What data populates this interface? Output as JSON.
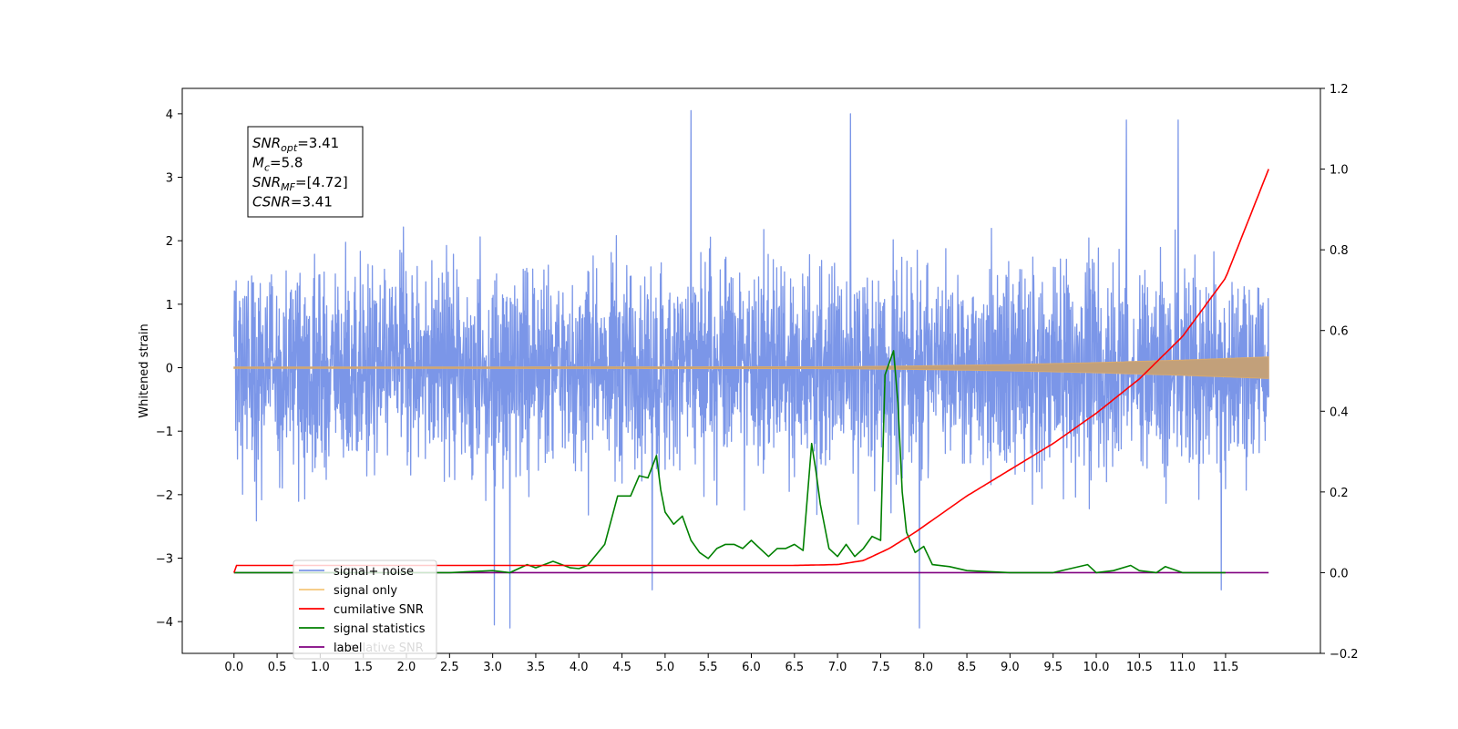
{
  "chart_data": {
    "type": "line",
    "ylabel": "Whitened strain",
    "xlim": [
      -0.6,
      12.6
    ],
    "ylim": [
      -4.5,
      4.4
    ],
    "y2lim": [
      -0.2,
      1.2
    ],
    "x_ticks": [
      "0.0",
      "0.5",
      "1.0",
      "1.5",
      "2.0",
      "2.5",
      "3.0",
      "3.5",
      "4.0",
      "4.5",
      "5.0",
      "5.5",
      "6.0",
      "6.5",
      "7.0",
      "7.5",
      "8.0",
      "8.5",
      "9.0",
      "9.5",
      "10.0",
      "10.5",
      "11.0",
      "11.5"
    ],
    "y_ticks": [
      "4",
      "3",
      "2",
      "1",
      "0",
      "−1",
      "−2",
      "−3",
      "−4"
    ],
    "y2_ticks": [
      "1.2",
      "1.0",
      "0.8",
      "0.6",
      "0.4",
      "0.2",
      "0.0",
      "−0.2"
    ],
    "grid": false,
    "legend_position": "lower left",
    "annotation": {
      "lines": [
        {
          "label": "SNR",
          "sub": "opt",
          "value": "=3.41"
        },
        {
          "label": "M",
          "sub": "c",
          "value": "=5.8"
        },
        {
          "label": "SNR",
          "sub": "MF",
          "value": "=[4.72]"
        },
        {
          "label": "CSNR",
          "sub": "",
          "value": "=3.41"
        }
      ]
    },
    "series": [
      {
        "name": "signal+ noise",
        "color": "#7b96e8",
        "axis": "left",
        "x_range": [
          0.0,
          12.0
        ],
        "typical_band": [
          -2.3,
          2.3
        ],
        "extremes": [
          {
            "x": 5.3,
            "y": 4.05
          },
          {
            "x": 7.15,
            "y": 4.0
          },
          {
            "x": 10.35,
            "y": 3.9
          },
          {
            "x": 10.95,
            "y": 3.9
          },
          {
            "x": 3.2,
            "y": -4.1
          },
          {
            "x": 3.02,
            "y": -4.05
          },
          {
            "x": 7.95,
            "y": -4.1
          },
          {
            "x": 11.45,
            "y": -3.5
          },
          {
            "x": 4.85,
            "y": -3.5
          }
        ]
      },
      {
        "name": "signal only",
        "color": "#f5c77a",
        "axis": "left",
        "x": [
          0.0,
          7.0,
          8.0,
          9.0,
          10.0,
          11.0,
          12.0
        ],
        "amplitude": [
          0.01,
          0.015,
          0.03,
          0.05,
          0.08,
          0.12,
          0.17
        ]
      },
      {
        "name": "cumilative SNR",
        "color": "#ff0000",
        "axis": "right",
        "x": [
          0.0,
          0.02,
          1.0,
          2.0,
          3.0,
          4.0,
          5.0,
          6.0,
          6.5,
          7.0,
          7.3,
          7.6,
          7.9,
          8.2,
          8.5,
          9.0,
          9.5,
          10.0,
          10.5,
          11.0,
          11.5,
          12.0
        ],
        "values": [
          0.0,
          0.018,
          0.018,
          0.018,
          0.018,
          0.018,
          0.018,
          0.018,
          0.018,
          0.02,
          0.03,
          0.06,
          0.1,
          0.145,
          0.19,
          0.255,
          0.32,
          0.395,
          0.48,
          0.585,
          0.73,
          1.0
        ]
      },
      {
        "name": "signal statistics",
        "color": "#008000",
        "axis": "right",
        "x": [
          0.0,
          1.0,
          2.0,
          2.5,
          3.0,
          3.2,
          3.4,
          3.5,
          3.7,
          3.9,
          4.0,
          4.1,
          4.3,
          4.45,
          4.6,
          4.7,
          4.8,
          4.9,
          4.95,
          5.0,
          5.1,
          5.2,
          5.3,
          5.4,
          5.5,
          5.6,
          5.7,
          5.8,
          5.9,
          6.0,
          6.1,
          6.2,
          6.3,
          6.4,
          6.5,
          6.6,
          6.7,
          6.75,
          6.8,
          6.9,
          7.0,
          7.1,
          7.2,
          7.3,
          7.4,
          7.5,
          7.55,
          7.6,
          7.65,
          7.7,
          7.75,
          7.8,
          7.9,
          8.0,
          8.1,
          8.3,
          8.5,
          9.0,
          9.5,
          9.9,
          10.0,
          10.2,
          10.4,
          10.5,
          10.7,
          10.8,
          11.0,
          11.5
        ],
        "values": [
          0.0,
          0.0,
          0.0,
          0.0,
          0.005,
          0.0,
          0.02,
          0.012,
          0.028,
          0.012,
          0.01,
          0.018,
          0.07,
          0.19,
          0.19,
          0.24,
          0.235,
          0.29,
          0.205,
          0.15,
          0.12,
          0.14,
          0.08,
          0.05,
          0.035,
          0.06,
          0.07,
          0.07,
          0.06,
          0.08,
          0.06,
          0.04,
          0.06,
          0.06,
          0.07,
          0.055,
          0.32,
          0.25,
          0.17,
          0.06,
          0.04,
          0.07,
          0.04,
          0.06,
          0.09,
          0.08,
          0.49,
          0.52,
          0.55,
          0.42,
          0.2,
          0.1,
          0.05,
          0.065,
          0.02,
          0.015,
          0.005,
          0.0,
          0.0,
          0.02,
          0.0,
          0.005,
          0.018,
          0.005,
          0.0,
          0.015,
          0.0,
          0.0
        ]
      },
      {
        "name": "label",
        "color": "#800080",
        "axis": "right",
        "x": [
          0.0,
          12.0
        ],
        "values": [
          0.0,
          0.0
        ]
      }
    ],
    "legend_ghost_text": "cumilative SNR"
  }
}
